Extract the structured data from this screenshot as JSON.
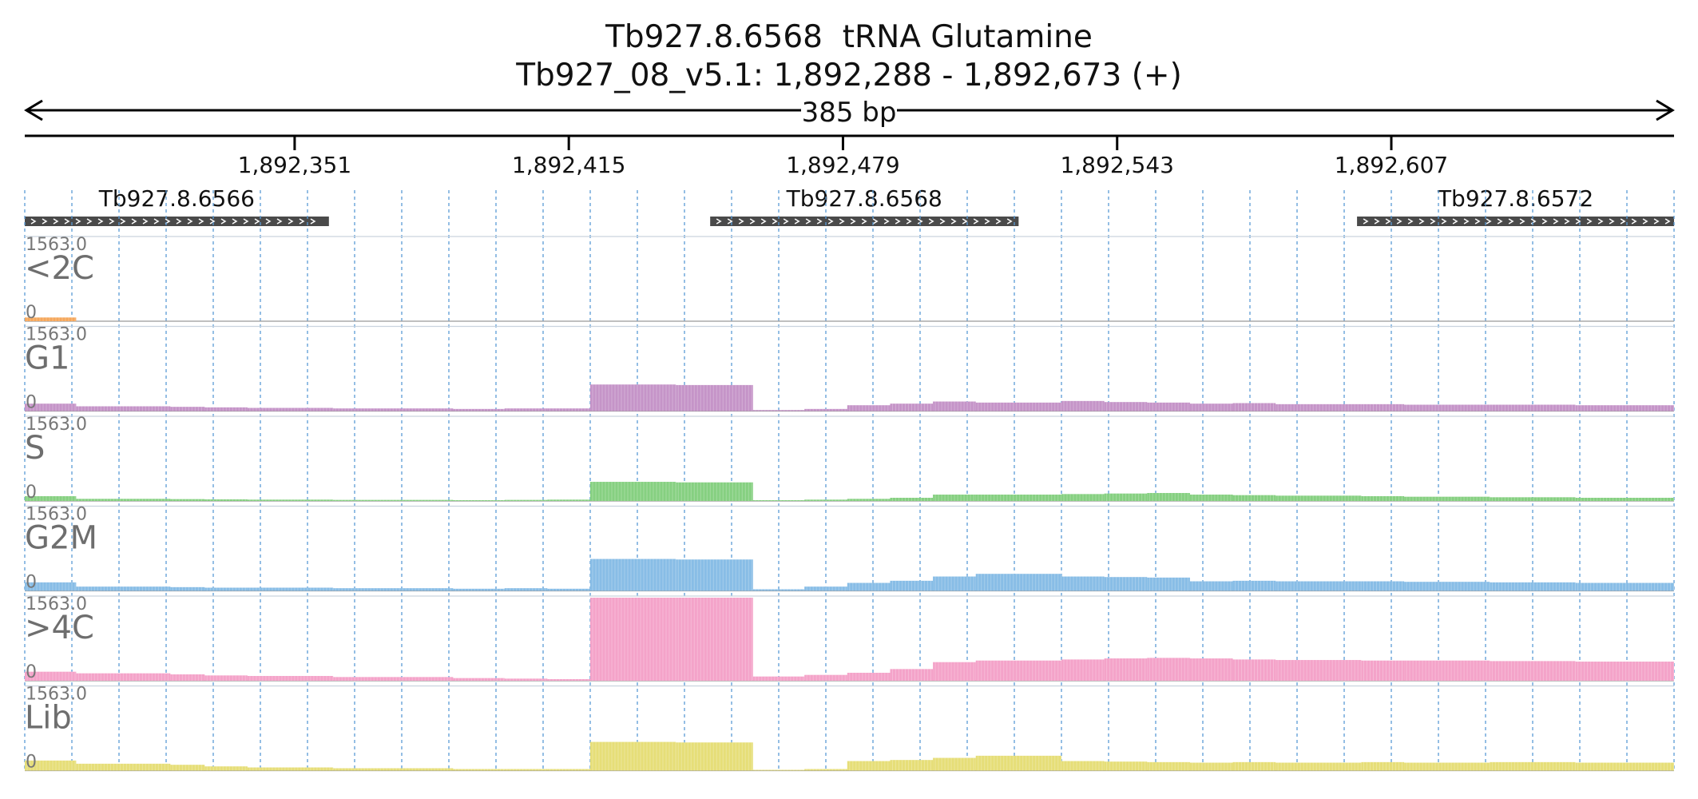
{
  "header": {
    "title": "Tb927.8.6568  tRNA Glutamine",
    "locus": "Tb927_08_v5.1: 1,892,288 - 1,892,673 (+)",
    "span_label": "385 bp"
  },
  "chart_data": {
    "type": "bar",
    "x_range": [
      1892288,
      1892673
    ],
    "ruler_ticks": [
      {
        "pos": 1892351,
        "label": "1,892,351"
      },
      {
        "pos": 1892415,
        "label": "1,892,415"
      },
      {
        "pos": 1892479,
        "label": "1,892,479"
      },
      {
        "pos": 1892543,
        "label": "1,892,543"
      },
      {
        "pos": 1892607,
        "label": "1,892,607"
      }
    ],
    "genes": [
      {
        "name": "Tb927.8.6566",
        "start": 1892288,
        "end": 1892359,
        "strand": "+"
      },
      {
        "name": "Tb927.8.6568",
        "start": 1892448,
        "end": 1892520,
        "strand": "+"
      },
      {
        "name": "Tb927.8.6572",
        "start": 1892599,
        "end": 1892673,
        "strand": "+"
      }
    ],
    "y_max_label": "1563.0",
    "y_min_label": "0",
    "ylim": [
      0,
      1563
    ],
    "breakpoints": [
      1892288,
      1892300,
      1892322,
      1892330,
      1892340,
      1892360,
      1892388,
      1892400,
      1892410,
      1892420,
      1892440,
      1892458,
      1892470,
      1892480,
      1892490,
      1892500,
      1892510,
      1892530,
      1892540,
      1892550,
      1892560,
      1892570,
      1892580,
      1892600,
      1892610,
      1892630,
      1892650,
      1892673
    ],
    "series": [
      {
        "name": "<2C",
        "color": "#f5a75b",
        "values": [
          70,
          0,
          0,
          0,
          0,
          0,
          0,
          0,
          0,
          0,
          0,
          0,
          0,
          0,
          0,
          0,
          0,
          0,
          0,
          0,
          0,
          0,
          0,
          0,
          0,
          0,
          0
        ]
      },
      {
        "name": "G1",
        "color": "#c594c8",
        "values": [
          140,
          90,
          80,
          70,
          60,
          50,
          40,
          50,
          50,
          500,
          490,
          20,
          40,
          110,
          140,
          180,
          160,
          190,
          170,
          160,
          140,
          150,
          130,
          130,
          120,
          120,
          110
        ]
      },
      {
        "name": "S",
        "color": "#86d081",
        "values": [
          90,
          40,
          35,
          30,
          25,
          20,
          15,
          20,
          25,
          360,
          350,
          15,
          25,
          40,
          60,
          120,
          120,
          130,
          140,
          150,
          120,
          110,
          100,
          90,
          80,
          70,
          60
        ]
      },
      {
        "name": "G2M",
        "color": "#88bde6",
        "values": [
          160,
          80,
          70,
          60,
          60,
          50,
          40,
          50,
          40,
          600,
          590,
          30,
          80,
          150,
          190,
          270,
          320,
          270,
          260,
          250,
          180,
          190,
          180,
          180,
          170,
          160,
          150
        ]
      },
      {
        "name": ">4C",
        "color": "#f4a3c9",
        "values": [
          170,
          140,
          120,
          100,
          90,
          70,
          50,
          40,
          30,
          1563,
          1563,
          80,
          110,
          150,
          220,
          350,
          380,
          400,
          420,
          430,
          420,
          400,
          390,
          380,
          380,
          370,
          360
        ]
      },
      {
        "name": "Lib",
        "color": "#e6de78",
        "values": [
          190,
          130,
          110,
          80,
          60,
          45,
          30,
          30,
          30,
          540,
          530,
          15,
          30,
          180,
          200,
          240,
          280,
          180,
          170,
          160,
          150,
          160,
          150,
          160,
          150,
          160,
          150
        ]
      }
    ]
  }
}
